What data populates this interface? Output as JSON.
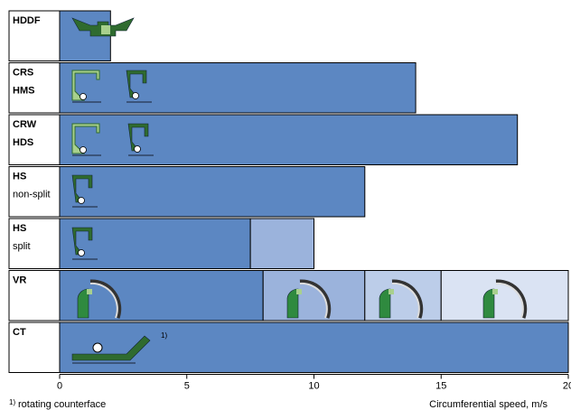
{
  "chart_data": {
    "type": "bar",
    "orientation": "horizontal",
    "categories": [
      [
        "HDDF"
      ],
      [
        "CRS",
        "HMS"
      ],
      [
        "CRW",
        "HDS"
      ],
      [
        "HS",
        "non-split"
      ],
      [
        "HS",
        "split"
      ],
      [
        "VR"
      ],
      [
        "CT"
      ]
    ],
    "bars": [
      {
        "segments": [
          {
            "value": 2,
            "color": "#5c87c2"
          }
        ]
      },
      {
        "segments": [
          {
            "value": 14,
            "color": "#5c87c2"
          }
        ]
      },
      {
        "segments": [
          {
            "value": 18,
            "color": "#5c87c2"
          }
        ]
      },
      {
        "segments": [
          {
            "value": 12,
            "color": "#5c87c2"
          }
        ]
      },
      {
        "segments": [
          {
            "value": 7.5,
            "color": "#5c87c2"
          },
          {
            "value": 2.5,
            "color": "#9bb3dc"
          }
        ]
      },
      {
        "segments": [
          {
            "value": 8,
            "color": "#5c87c2"
          },
          {
            "value": 4,
            "color": "#9bb3dc"
          },
          {
            "value": 3,
            "color": "#bccde9"
          },
          {
            "value": 5,
            "color": "#dae3f3"
          }
        ]
      },
      {
        "segments": [
          {
            "value": 20,
            "color": "#5c87c2"
          }
        ]
      }
    ],
    "xlim": [
      0,
      20
    ],
    "xticks": [
      0,
      5,
      10,
      15,
      20
    ],
    "xlabel": "Circumferential speed, m/s",
    "annotation": "1)",
    "footnote": "rotating counterface"
  }
}
